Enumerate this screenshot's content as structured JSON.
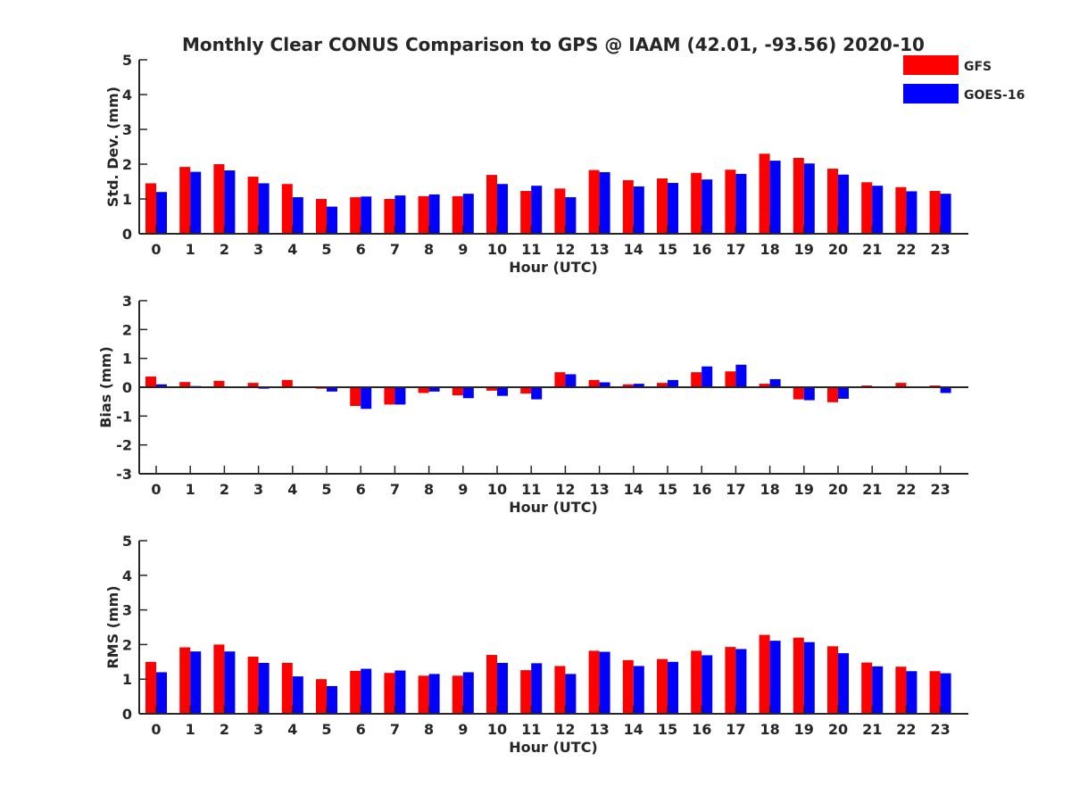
{
  "title": "Monthly Clear CONUS Comparison to GPS @ IAAM (42.01, -93.56) 2020-10",
  "legend": [
    {
      "label": "GFS",
      "color": "#ff0000"
    },
    {
      "label": "GOES-16",
      "color": "#0000ff"
    }
  ],
  "chart_data": [
    {
      "type": "bar",
      "xlabel": "Hour (UTC)",
      "ylabel": "Std. Dev. (mm)",
      "ylim": [
        0,
        5
      ],
      "yticks": [
        "0",
        "1",
        "2",
        "3",
        "4",
        "5"
      ],
      "categories": [
        "0",
        "1",
        "2",
        "3",
        "4",
        "5",
        "6",
        "7",
        "8",
        "9",
        "10",
        "11",
        "12",
        "13",
        "14",
        "15",
        "16",
        "17",
        "18",
        "19",
        "20",
        "21",
        "22",
        "23"
      ],
      "series": [
        {
          "name": "GFS",
          "color": "#ff0000",
          "values": [
            1.45,
            1.92,
            2.0,
            1.64,
            1.43,
            1.0,
            1.05,
            1.0,
            1.08,
            1.08,
            1.69,
            1.23,
            1.3,
            1.83,
            1.54,
            1.59,
            1.75,
            1.84,
            2.3,
            2.18,
            1.87,
            1.48,
            1.34,
            1.23
          ]
        },
        {
          "name": "GOES-16",
          "color": "#0000ff",
          "values": [
            1.2,
            1.78,
            1.82,
            1.45,
            1.05,
            0.78,
            1.07,
            1.1,
            1.13,
            1.15,
            1.43,
            1.38,
            1.05,
            1.77,
            1.36,
            1.46,
            1.56,
            1.72,
            2.1,
            2.02,
            1.7,
            1.38,
            1.22,
            1.15
          ]
        }
      ],
      "legend": "top-right"
    },
    {
      "type": "bar",
      "xlabel": "Hour (UTC)",
      "ylabel": "Bias (mm)",
      "ylim": [
        -3,
        3
      ],
      "yticks": [
        "-3",
        "-2",
        "-1",
        "0",
        "1",
        "2",
        "3"
      ],
      "categories": [
        "0",
        "1",
        "2",
        "3",
        "4",
        "5",
        "6",
        "7",
        "8",
        "9",
        "10",
        "11",
        "12",
        "13",
        "14",
        "15",
        "16",
        "17",
        "18",
        "19",
        "20",
        "21",
        "22",
        "23"
      ],
      "series": [
        {
          "name": "GFS",
          "color": "#ff0000",
          "values": [
            0.37,
            0.18,
            0.22,
            0.15,
            0.25,
            -0.05,
            -0.65,
            -0.6,
            -0.2,
            -0.28,
            -0.12,
            -0.22,
            0.52,
            0.25,
            0.1,
            0.15,
            0.52,
            0.55,
            0.12,
            -0.42,
            -0.52,
            0.06,
            0.15,
            0.06
          ]
        },
        {
          "name": "GOES-16",
          "color": "#0000ff",
          "values": [
            0.1,
            0.04,
            0.0,
            -0.05,
            0.0,
            -0.15,
            -0.75,
            -0.6,
            -0.15,
            -0.38,
            -0.3,
            -0.42,
            0.45,
            0.17,
            0.12,
            0.25,
            0.72,
            0.78,
            0.28,
            -0.45,
            -0.4,
            0.0,
            0.03,
            -0.2
          ]
        }
      ]
    },
    {
      "type": "bar",
      "xlabel": "Hour (UTC)",
      "ylabel": "RMS (mm)",
      "ylim": [
        0,
        5
      ],
      "yticks": [
        "0",
        "1",
        "2",
        "3",
        "4",
        "5"
      ],
      "categories": [
        "0",
        "1",
        "2",
        "3",
        "4",
        "5",
        "6",
        "7",
        "8",
        "9",
        "10",
        "11",
        "12",
        "13",
        "14",
        "15",
        "16",
        "17",
        "18",
        "19",
        "20",
        "21",
        "22",
        "23"
      ],
      "series": [
        {
          "name": "GFS",
          "color": "#ff0000",
          "values": [
            1.5,
            1.92,
            2.0,
            1.65,
            1.47,
            1.0,
            1.24,
            1.18,
            1.1,
            1.1,
            1.7,
            1.26,
            1.38,
            1.82,
            1.55,
            1.58,
            1.82,
            1.93,
            2.28,
            2.2,
            1.95,
            1.48,
            1.36,
            1.23
          ]
        },
        {
          "name": "GOES-16",
          "color": "#0000ff",
          "values": [
            1.2,
            1.8,
            1.8,
            1.47,
            1.08,
            0.8,
            1.3,
            1.25,
            1.15,
            1.2,
            1.47,
            1.46,
            1.15,
            1.79,
            1.38,
            1.5,
            1.69,
            1.87,
            2.11,
            2.07,
            1.75,
            1.37,
            1.23,
            1.17
          ]
        }
      ]
    }
  ]
}
